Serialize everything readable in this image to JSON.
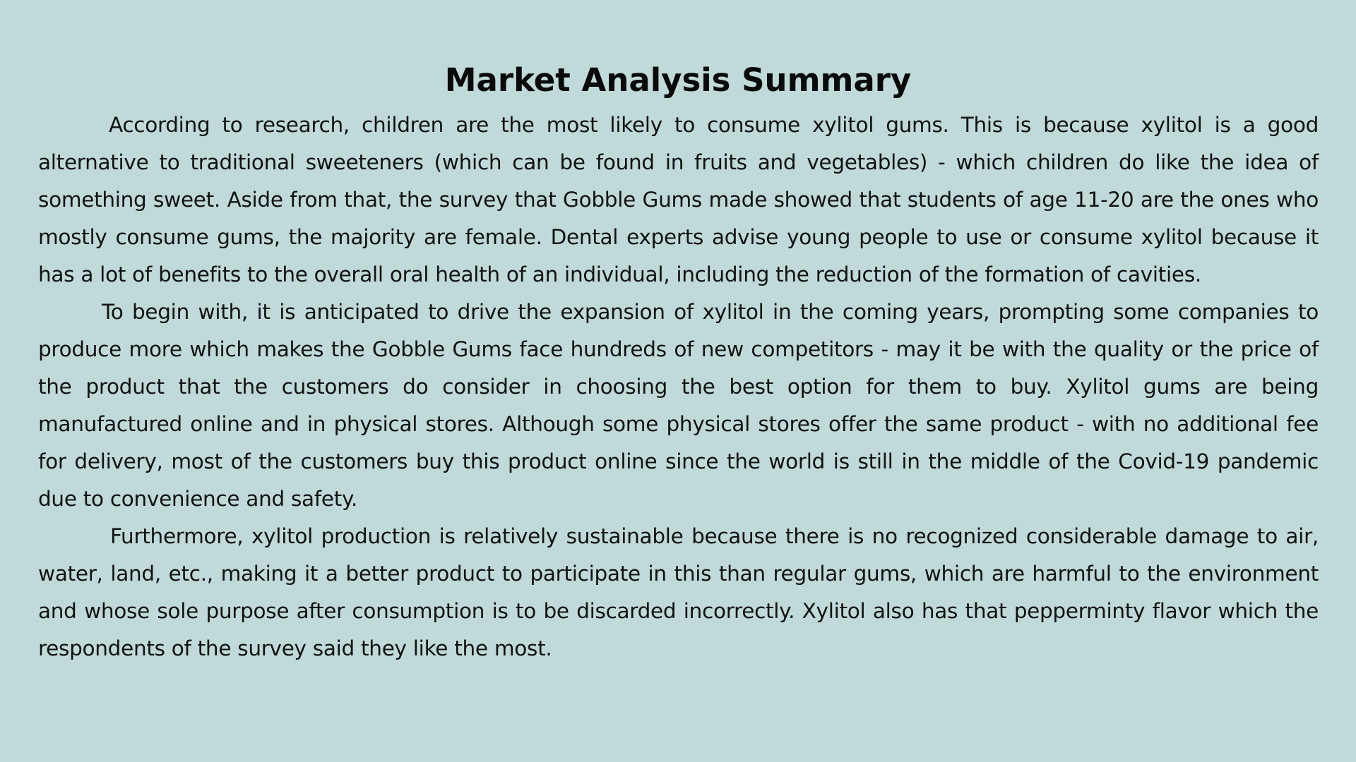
{
  "document": {
    "title": "Market Analysis Summary",
    "paragraphs": [
      "According to research, children are the most likely to consume xylitol gums. This is because xylitol is a good alternative to traditional sweeteners (which can be found in fruits and vegetables) - which children do like the idea of something sweet. Aside from that, the survey that Gobble Gums made showed that students of age 11-20 are the ones who mostly consume gums, the majority are female. Dental experts advise young people to use or consume xylitol because it has a lot of benefits to the overall oral health of an individual, including the reduction of the formation of cavities.",
      "To begin with, it is anticipated to drive the expansion of xylitol in the coming years, prompting some companies to produce more which makes the Gobble Gums face hundreds of new competitors - may it be with the quality or the price of the product that the customers do consider in choosing the best option for them to buy. Xylitol gums are being manufactured online and in physical stores. Although some physical stores offer the same product - with no additional fee for delivery, most of the customers buy this product online since the world is still in the middle of the Covid-19 pandemic due to convenience and safety.",
      "Furthermore, xylitol production is relatively sustainable because there is no recognized considerable damage to air, water, land, etc., making it a better product to participate in this than regular gums, which are harmful to the environment and whose sole purpose after consumption is to be discarded incorrectly. Xylitol also has that pepperminty flavor which the respondents of the survey said they like the most."
    ]
  },
  "colors": {
    "background": "#c0d9d9",
    "text": "#121212"
  }
}
